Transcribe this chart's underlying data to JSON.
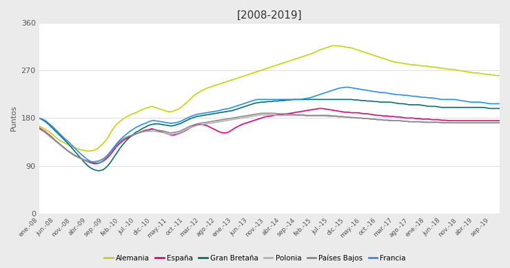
{
  "title": "[2008-2019]",
  "ylabel": "Puntos",
  "ylim": [
    0,
    360
  ],
  "yticks": [
    0,
    90,
    180,
    270,
    360
  ],
  "background_color": "#ebebeb",
  "plot_bg_color": "#ffffff",
  "legend_entries": [
    "Alemania",
    "España",
    "Gran Bretaña",
    "Polonia",
    "Países Bajos",
    "Francia"
  ],
  "series_colors": [
    "#c8d400",
    "#e6007e",
    "#007070",
    "#b0b0b0",
    "#888888",
    "#1e90ff"
  ],
  "legend_colors": [
    "#c8d400",
    "#e6007e",
    "#007070",
    "#b0b0b0",
    "#888888",
    "#1e90ff"
  ],
  "xtick_labels": [
    "ene.-08",
    "jun.-08",
    "nov.-08",
    "abr.-09",
    "sep.-09",
    "feb.-10",
    "jul.-10",
    "dic.-10",
    "may.-11",
    "oct.-11",
    "mar.-12",
    "ago.-12",
    "ene.-13",
    "jun.-13",
    "nov.-13",
    "abr.-14",
    "sep.-14",
    "feb.-15",
    "jul.-15",
    "dic.-15",
    "may.-16",
    "oct.-16",
    "mar.-17",
    "ago.-17",
    "ene.-18",
    "jun.-18",
    "nov.-18",
    "abr.-19",
    "sep.-19"
  ],
  "xtick_positions": [
    0,
    5,
    10,
    15,
    20,
    25,
    30,
    35,
    40,
    45,
    50,
    55,
    60,
    65,
    70,
    75,
    80,
    85,
    90,
    95,
    100,
    105,
    110,
    115,
    120,
    125,
    130,
    135,
    140
  ],
  "line_width": 1.2,
  "alemania": [
    165,
    162,
    158,
    155,
    150,
    145,
    140,
    136,
    133,
    130,
    127,
    124,
    122,
    120,
    119,
    118,
    118,
    119,
    122,
    127,
    133,
    140,
    150,
    160,
    168,
    173,
    178,
    182,
    185,
    188,
    190,
    193,
    196,
    198,
    200,
    202,
    200,
    198,
    196,
    194,
    192,
    192,
    194,
    196,
    200,
    205,
    210,
    216,
    222,
    226,
    230,
    233,
    236,
    238,
    240,
    242,
    244,
    246,
    248,
    250,
    252,
    254,
    256,
    258,
    260,
    262,
    264,
    266,
    268,
    270,
    272,
    274,
    276,
    278,
    280,
    282,
    284,
    286,
    288,
    290,
    292,
    294,
    296,
    298,
    300,
    302,
    305,
    308,
    310,
    312,
    314,
    316,
    316,
    316,
    315,
    314,
    313,
    312,
    310,
    308,
    306,
    304,
    302,
    300,
    298,
    296,
    294,
    292,
    290,
    288,
    286,
    285,
    284,
    283,
    282,
    281,
    280,
    280,
    279,
    278,
    278,
    277,
    276,
    276,
    275,
    274,
    273,
    272,
    272,
    271,
    270,
    269,
    268,
    267,
    266,
    265,
    265,
    264,
    263,
    262,
    262,
    261,
    260,
    260
  ],
  "espana": [
    162,
    158,
    154,
    149,
    144,
    138,
    133,
    128,
    123,
    118,
    114,
    110,
    107,
    104,
    101,
    98,
    96,
    94,
    94,
    96,
    99,
    104,
    110,
    118,
    126,
    132,
    137,
    141,
    144,
    147,
    150,
    152,
    155,
    157,
    158,
    160,
    158,
    156,
    154,
    152,
    150,
    148,
    148,
    150,
    152,
    155,
    158,
    162,
    165,
    167,
    168,
    167,
    166,
    163,
    160,
    157,
    154,
    152,
    152,
    154,
    158,
    162,
    165,
    168,
    170,
    172,
    174,
    176,
    178,
    180,
    182,
    183,
    184,
    185,
    186,
    186,
    187,
    188,
    189,
    190,
    191,
    192,
    193,
    194,
    195,
    196,
    197,
    198,
    198,
    197,
    196,
    195,
    194,
    193,
    192,
    191,
    191,
    190,
    190,
    190,
    189,
    188,
    188,
    187,
    186,
    185,
    185,
    184,
    184,
    183,
    183,
    182,
    182,
    181,
    180,
    180,
    180,
    179,
    179,
    178,
    178,
    178,
    177,
    177,
    177,
    176,
    176,
    175,
    175,
    175,
    175,
    175,
    175,
    175,
    175,
    175,
    175,
    175,
    175,
    175,
    175,
    175,
    175,
    175
  ],
  "gran_bretana": [
    180,
    177,
    173,
    168,
    162,
    156,
    150,
    144,
    138,
    132,
    125,
    118,
    111,
    104,
    97,
    91,
    86,
    83,
    81,
    81,
    83,
    88,
    95,
    104,
    113,
    122,
    130,
    137,
    143,
    148,
    153,
    156,
    160,
    163,
    166,
    168,
    169,
    169,
    168,
    167,
    166,
    165,
    166,
    168,
    170,
    173,
    176,
    179,
    181,
    183,
    184,
    185,
    186,
    187,
    188,
    189,
    190,
    191,
    192,
    193,
    194,
    196,
    198,
    200,
    202,
    204,
    206,
    208,
    209,
    210,
    210,
    211,
    211,
    212,
    212,
    213,
    213,
    214,
    214,
    215,
    215,
    215,
    215,
    215,
    215,
    215,
    215,
    215,
    215,
    215,
    215,
    215,
    215,
    215,
    215,
    215,
    215,
    215,
    214,
    214,
    213,
    213,
    212,
    212,
    211,
    211,
    210,
    210,
    210,
    210,
    209,
    208,
    207,
    207,
    206,
    205,
    205,
    205,
    205,
    204,
    203,
    202,
    202,
    202,
    201,
    200,
    200,
    200,
    200,
    200,
    200,
    200,
    200,
    200,
    200,
    200,
    200,
    200,
    200,
    199,
    198,
    198,
    198,
    198
  ],
  "polonia": [
    160,
    156,
    152,
    147,
    142,
    137,
    132,
    127,
    122,
    117,
    113,
    109,
    106,
    103,
    101,
    99,
    98,
    98,
    99,
    101,
    104,
    109,
    116,
    124,
    131,
    137,
    141,
    144,
    146,
    148,
    150,
    152,
    154,
    155,
    155,
    155,
    155,
    154,
    153,
    152,
    150,
    149,
    150,
    151,
    153,
    156,
    159,
    162,
    164,
    166,
    167,
    168,
    169,
    170,
    171,
    172,
    173,
    174,
    175,
    176,
    177,
    178,
    179,
    180,
    181,
    182,
    183,
    184,
    185,
    186,
    186,
    186,
    186,
    186,
    185,
    185,
    185,
    185,
    185,
    185,
    185,
    185,
    185,
    184,
    184,
    184,
    184,
    184,
    184,
    184,
    183,
    183,
    183,
    182,
    182,
    182,
    181,
    181,
    180,
    180,
    180,
    179,
    179,
    178,
    178,
    177,
    177,
    176,
    176,
    176,
    175,
    175,
    175,
    174,
    174,
    173,
    173,
    173,
    173,
    173,
    172,
    172,
    172,
    172,
    172,
    172,
    171,
    171,
    171,
    171,
    171,
    171,
    171,
    171,
    171,
    171,
    171,
    171,
    171,
    171,
    171,
    171,
    171,
    171
  ],
  "paises_bajos": [
    160,
    157,
    153,
    148,
    143,
    138,
    133,
    128,
    123,
    118,
    114,
    110,
    107,
    104,
    101,
    99,
    98,
    97,
    98,
    100,
    103,
    108,
    115,
    122,
    129,
    135,
    139,
    143,
    146,
    148,
    150,
    152,
    154,
    156,
    157,
    158,
    158,
    157,
    156,
    155,
    153,
    152,
    153,
    154,
    156,
    159,
    162,
    165,
    167,
    169,
    170,
    171,
    172,
    173,
    174,
    175,
    176,
    177,
    178,
    179,
    180,
    181,
    182,
    183,
    184,
    185,
    186,
    187,
    188,
    189,
    189,
    189,
    189,
    189,
    188,
    188,
    188,
    187,
    187,
    187,
    186,
    186,
    186,
    185,
    185,
    185,
    185,
    185,
    185,
    185,
    185,
    184,
    184,
    183,
    183,
    182,
    182,
    181,
    181,
    180,
    180,
    179,
    179,
    178,
    178,
    177,
    177,
    176,
    176,
    175,
    175,
    175,
    175,
    174,
    174,
    173,
    173,
    173,
    173,
    172,
    172,
    172,
    172,
    172,
    172,
    171,
    171,
    171,
    171,
    171,
    171,
    171,
    171,
    171,
    171,
    171,
    171,
    171,
    171,
    171,
    171,
    171,
    171,
    171
  ],
  "francia": [
    180,
    178,
    175,
    170,
    165,
    159,
    153,
    147,
    141,
    136,
    130,
    124,
    118,
    112,
    107,
    102,
    98,
    96,
    95,
    96,
    100,
    106,
    114,
    122,
    131,
    138,
    144,
    149,
    154,
    158,
    162,
    165,
    168,
    170,
    173,
    175,
    175,
    174,
    173,
    172,
    171,
    170,
    171,
    172,
    174,
    177,
    180,
    183,
    185,
    187,
    188,
    189,
    190,
    191,
    192,
    193,
    194,
    196,
    197,
    198,
    200,
    202,
    204,
    206,
    208,
    210,
    212,
    214,
    215,
    215,
    215,
    215,
    215,
    215,
    215,
    215,
    215,
    215,
    215,
    215,
    215,
    215,
    216,
    217,
    218,
    220,
    222,
    224,
    226,
    228,
    230,
    232,
    234,
    236,
    237,
    238,
    238,
    237,
    236,
    235,
    234,
    233,
    232,
    231,
    230,
    229,
    228,
    228,
    227,
    226,
    225,
    224,
    224,
    223,
    223,
    222,
    221,
    221,
    220,
    219,
    219,
    218,
    218,
    217,
    216,
    215,
    215,
    215,
    215,
    215,
    214,
    213,
    212,
    211,
    210,
    210,
    210,
    210,
    209,
    208,
    207,
    207,
    207,
    207
  ]
}
